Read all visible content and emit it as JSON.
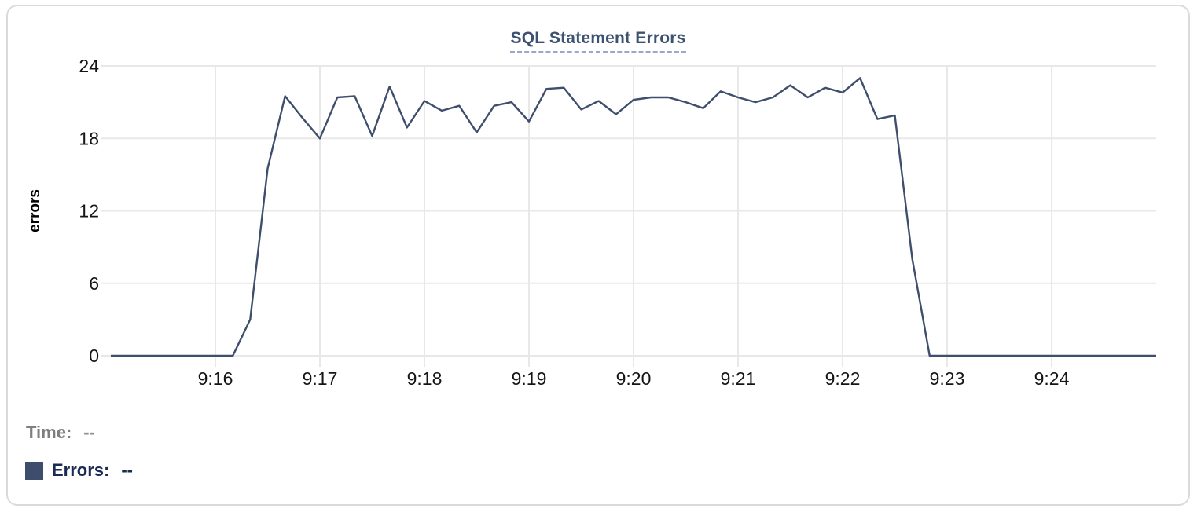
{
  "card": {
    "title": "SQL Statement Errors"
  },
  "chart_data": {
    "type": "line",
    "title": "SQL Statement Errors",
    "xlabel": "",
    "ylabel": "errors",
    "x_axis": {
      "start_time": "9:15:00",
      "end_time": "9:25:00",
      "tick_labels": [
        "9:16",
        "9:17",
        "9:18",
        "9:19",
        "9:20",
        "9:21",
        "9:22",
        "9:23",
        "9:24"
      ],
      "tick_offsets_seconds": [
        60,
        120,
        180,
        240,
        300,
        360,
        420,
        480,
        540
      ],
      "total_seconds": 600
    },
    "y_axis": {
      "ticks": [
        0,
        6,
        12,
        18,
        24
      ],
      "ylim": [
        0,
        24
      ]
    },
    "grid": true,
    "legend_position": "bottom-left",
    "line_color": "#3E4E6C",
    "series": [
      {
        "name": "Errors",
        "start_offset_seconds": 0,
        "interval_seconds": 10,
        "values": [
          0,
          0,
          0,
          0,
          0,
          0,
          0,
          0,
          3,
          15.5,
          21.5,
          19.7,
          18,
          21.4,
          21.5,
          18.2,
          22.3,
          18.9,
          21.1,
          20.3,
          20.7,
          18.5,
          20.7,
          21,
          19.4,
          22.1,
          22.2,
          20.4,
          21.1,
          20,
          21.2,
          21.4,
          21.4,
          21,
          20.5,
          21.9,
          21.4,
          21,
          21.4,
          22.4,
          21.4,
          22.2,
          21.8,
          23,
          19.6,
          19.9,
          8,
          0,
          0,
          0,
          0,
          0,
          0,
          0,
          0,
          0,
          0,
          0,
          0,
          0,
          0
        ]
      }
    ]
  },
  "legend": {
    "time_label": "Time:",
    "time_value": "--",
    "errors_label": "Errors:",
    "errors_value": "--",
    "swatch_color": "#3E4D6B"
  },
  "colors": {
    "line": "#3E4E6C",
    "gridline": "#e8e8e8",
    "tick_label": "#151515",
    "axis_label": "#000000",
    "title": "#3C5270",
    "title_underline": "#9AA8C7",
    "card_border": "#dadada"
  }
}
